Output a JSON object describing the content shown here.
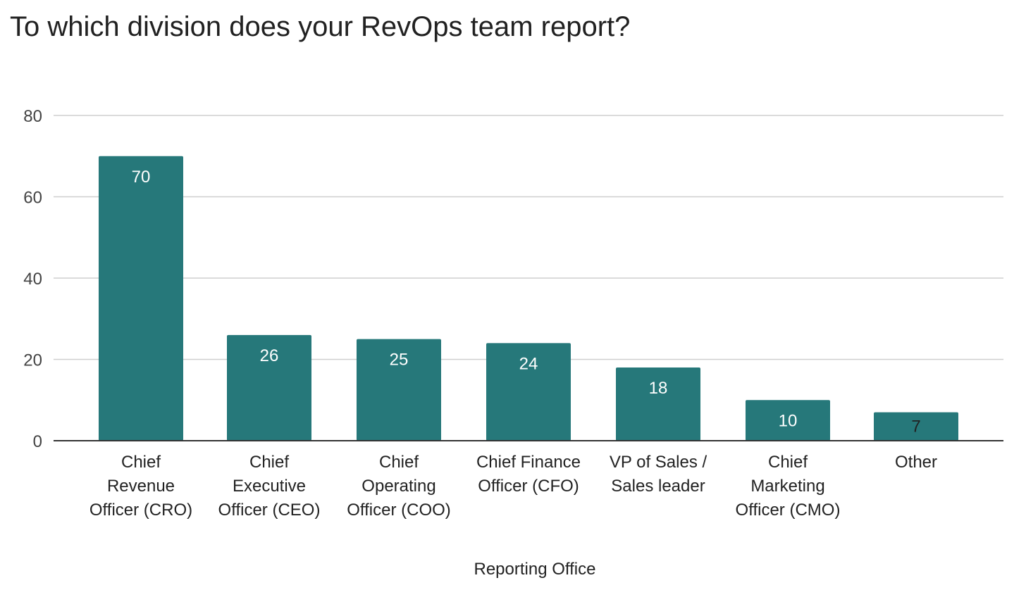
{
  "chart_data": {
    "type": "bar",
    "title": "To which division does your RevOps team report?",
    "xlabel": "Reporting Office",
    "ylabel": "",
    "ylim": [
      0,
      80
    ],
    "yticks": [
      0,
      20,
      40,
      60,
      80
    ],
    "grid": true,
    "legend": "none",
    "bar_color": "#26787a",
    "categories": [
      [
        "Chief",
        "Revenue",
        "Officer (CRO)"
      ],
      [
        "Chief",
        "Executive",
        "Officer (CEO)"
      ],
      [
        "Chief",
        "Operating",
        "Officer (COO)"
      ],
      [
        "Chief Finance",
        "Officer (CFO)"
      ],
      [
        "VP of Sales /",
        "Sales leader"
      ],
      [
        "Chief",
        "Marketing",
        "Officer (CMO)"
      ],
      [
        "Other"
      ]
    ],
    "values": [
      70,
      26,
      25,
      24,
      18,
      10,
      7
    ],
    "data_labels": [
      "70",
      "26",
      "25",
      "24",
      "18",
      "10",
      "7"
    ]
  }
}
